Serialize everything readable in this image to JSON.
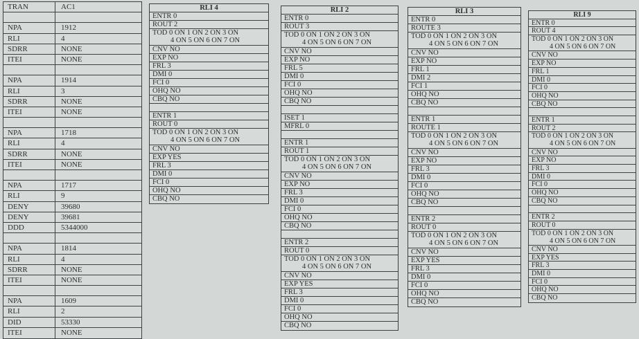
{
  "left_table": {
    "rows": [
      [
        "TRAN",
        "AC1"
      ],
      [
        "",
        ""
      ],
      [
        "NPA",
        "1912"
      ],
      [
        "RLI",
        "4"
      ],
      [
        "SDRR",
        "NONE"
      ],
      [
        "ITEI",
        "NONE"
      ],
      [
        "",
        ""
      ],
      [
        "NPA",
        "1914"
      ],
      [
        "RLI",
        "3"
      ],
      [
        "SDRR",
        "NONE"
      ],
      [
        "ITEI",
        "NONE"
      ],
      [
        "",
        ""
      ],
      [
        "NPA",
        "1718"
      ],
      [
        "RLI",
        "4"
      ],
      [
        "SDRR",
        "NONE"
      ],
      [
        "ITEI",
        "NONE"
      ],
      [
        "",
        ""
      ],
      [
        "NPA",
        "1717"
      ],
      [
        "RLI",
        "9"
      ],
      [
        "DENY",
        "39680"
      ],
      [
        "DENY",
        "39681"
      ],
      [
        "DDD",
        "5344000"
      ],
      [
        "",
        ""
      ],
      [
        "NPA",
        "1814"
      ],
      [
        "RLI",
        "4"
      ],
      [
        "SDRR",
        "NONE"
      ],
      [
        "ITEI",
        "NONE"
      ],
      [
        "",
        ""
      ],
      [
        "NPA",
        "1609"
      ],
      [
        "RLI",
        "2"
      ],
      [
        "DID",
        "53330"
      ],
      [
        "ITEI",
        "NONE"
      ]
    ]
  },
  "rli_tables": [
    {
      "id": "rli4",
      "title": "RLI 4",
      "sections": [
        [
          "ENTR 0",
          "ROUT 2",
          [
            "TOD 0 ON 1 ON 2 ON 3 ON",
            "4 ON 5 ON 6 ON 7 ON"
          ],
          "CNV NO",
          "EXP NO",
          "FRL 3",
          "DMI 0",
          "FCI 0",
          "OHQ NO",
          "CBQ NO"
        ],
        [
          "ENTR 1",
          "ROUT 0",
          [
            "TOD 0 ON 1 ON 2 ON 3 ON",
            "4 ON 5 ON 6 ON 7 ON"
          ],
          "CNV NO",
          "EXP YES",
          "FRL 3",
          "DMI 0",
          "FCI 0",
          "OHQ NO",
          "CBQ NO"
        ]
      ]
    },
    {
      "id": "rli2",
      "title": "RLI 2",
      "sections": [
        [
          "ENTR 0",
          "ROUT 3",
          [
            "TOD 0 ON 1 ON 2 ON 3 ON",
            "4 ON 5 ON 6 ON 7 ON"
          ],
          "CNV NO",
          "EXP NO",
          "FRL 5",
          "DMI 0",
          "FCI 0",
          "OHQ NO",
          "CBQ NO"
        ],
        [
          "ISET 1",
          "MFRL 0"
        ],
        [
          "ENTR 1",
          "ROUT 1",
          [
            "TOD 0 ON 1 ON 2 ON 3 ON",
            "4 ON 5 ON 6 ON 7 ON"
          ],
          "CNV NO",
          "EXP NO",
          "FRL 3",
          "DMI 0",
          "FCI 0",
          "OHQ NO",
          "CBQ NO"
        ],
        [
          "ENTR 2",
          "ROUT 0",
          [
            "TOD 0 ON 1 ON 2 ON 3 ON",
            "4 ON 5 ON 6 ON 7 ON"
          ],
          "CNV NO",
          "EXP YES",
          "FRL 3",
          "DMI 0",
          "FCI 0",
          "OHQ NO",
          "CBQ NO"
        ]
      ]
    },
    {
      "id": "rli3",
      "title": "RLI 3",
      "sections": [
        [
          "ENTR 0",
          "ROUTE 3",
          [
            "TOD 0 ON 1 ON 2 ON 3 ON",
            "4 ON 5 ON 6 ON 7 ON"
          ],
          "CNV NO",
          "EXP NO",
          "FRL 1",
          "DMI 2",
          "FCI 1",
          "OHQ NO",
          "CBQ NO"
        ],
        [
          "ENTR 1",
          "ROUTE 1",
          [
            "TOD 0 ON 1 ON 2 ON 3 ON",
            "4 ON 5 ON 6 ON 7 ON"
          ],
          "CNV NO",
          "EXP NO",
          "FRL 3",
          "DMI 0",
          "FCI 0",
          "OHQ NO",
          "CBQ NO"
        ],
        [
          "ENTR 2",
          "ROUT 0",
          [
            "TOD 0 ON 1 ON 2 ON 3 ON",
            "4 ON 5 ON 6 ON 7 ON"
          ],
          "CNV NO",
          "EXP YES",
          "FRL 3",
          "DMI 0",
          "FCI 0",
          "OHQ NO",
          "CBQ NO"
        ]
      ]
    },
    {
      "id": "rli9",
      "title": "RLI 9",
      "sections": [
        [
          "ENTR 0",
          "ROUT 4",
          [
            "TOD 0 ON 1 ON 2 ON 3 ON",
            "4 ON 5 ON 6 ON 7 ON"
          ],
          "CNV NO",
          "EXP NO",
          "FRL 1",
          "DMI 0",
          "FCI 0",
          "OHQ NO",
          "CBQ NO"
        ],
        [
          "ENTR 1",
          "ROUT 2",
          [
            "TOD 0 ON 1 ON 2 ON 3 ON",
            "4 ON 5 ON 6 ON 7 ON"
          ],
          "CNV NO",
          "EXP NO",
          "FRL 3",
          "DMI 0",
          "FCI 0",
          "OHQ NO",
          "CBQ NO"
        ],
        [
          "ENTR 2",
          "ROUT 0",
          [
            "TOD 0 ON 1 ON 2 ON 3 ON",
            "4 ON 5 ON 6 ON 7 ON"
          ],
          "CNV NO",
          "EXP YES",
          "FRL 3",
          "DMI 0",
          "FCI 0",
          "OHQ NO",
          "CBQ NO"
        ]
      ]
    }
  ]
}
